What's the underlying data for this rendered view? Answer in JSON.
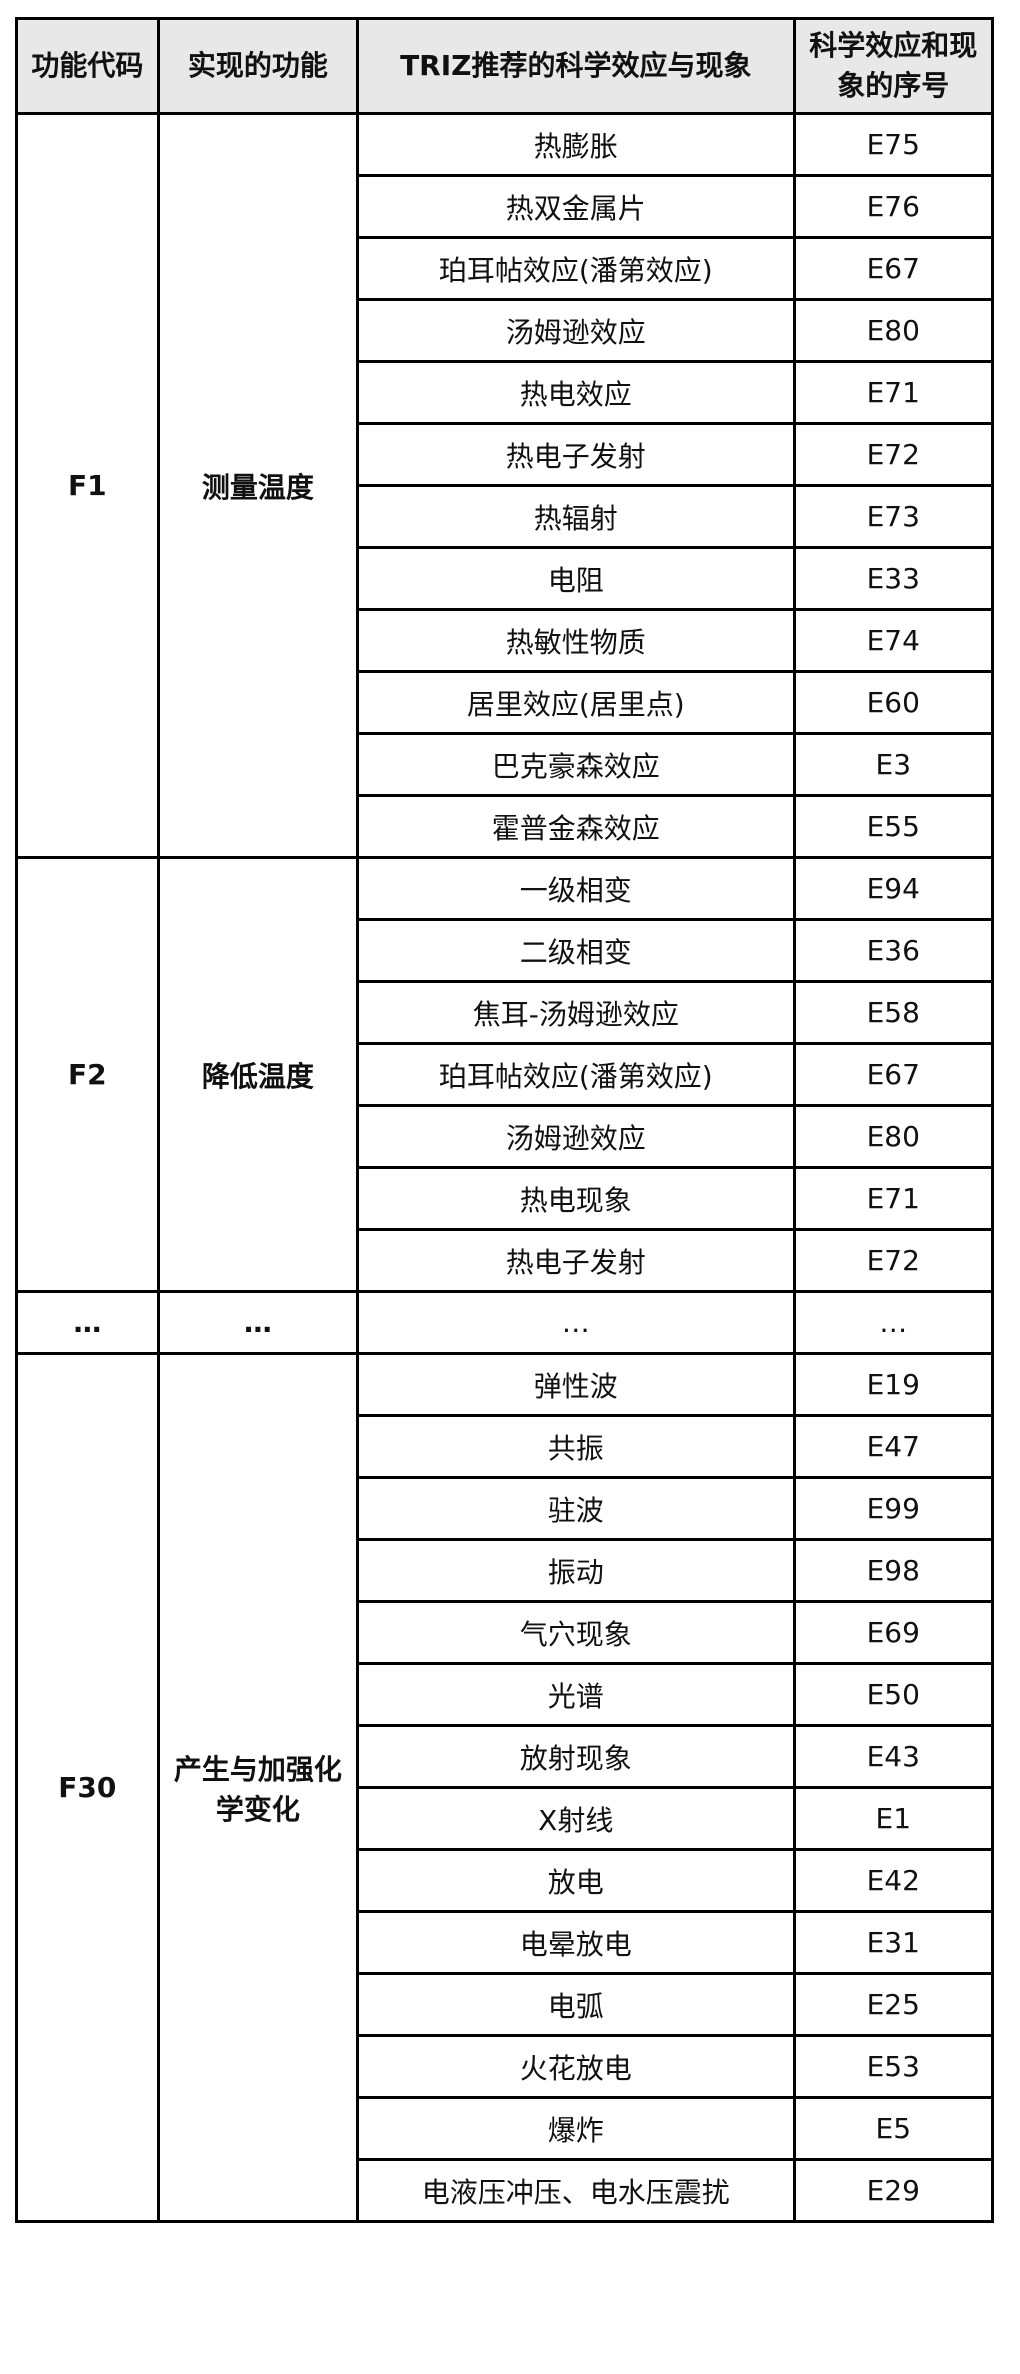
{
  "headers": [
    "功能代码",
    "实现的功能",
    "TRIZ推荐的科学效应与现象",
    "科学效应和现象的序号"
  ],
  "groups": [
    {
      "code": "F1",
      "function": "测量温度",
      "rows": [
        [
          "热膨胀",
          "E75"
        ],
        [
          "热双金属片",
          "E76"
        ],
        [
          "珀耳帖效应(潘第效应)",
          "E67"
        ],
        [
          "汤姆逊效应",
          "E80"
        ],
        [
          "热电效应",
          "E71"
        ],
        [
          "热电子发射",
          "E72"
        ],
        [
          "热辐射",
          "E73"
        ],
        [
          "电阻",
          "E33"
        ],
        [
          "热敏性物质",
          "E74"
        ],
        [
          "居里效应(居里点)",
          "E60"
        ],
        [
          "巴克豪森效应",
          "E3"
        ],
        [
          "霍普金森效应",
          "E55"
        ]
      ]
    },
    {
      "code": "F2",
      "function": "降低温度",
      "rows": [
        [
          "一级相变",
          "E94"
        ],
        [
          "二级相变",
          "E36"
        ],
        [
          "焦耳-汤姆逊效应",
          "E58"
        ],
        [
          "珀耳帖效应(潘第效应)",
          "E67"
        ],
        [
          "汤姆逊效应",
          "E80"
        ],
        [
          "热电现象",
          "E71"
        ],
        [
          "热电子发射",
          "E72"
        ]
      ]
    },
    {
      "code": "…",
      "function": "…",
      "rows": [
        [
          "…",
          "…"
        ]
      ]
    },
    {
      "code": "F30",
      "function": "产生与加强化学变化",
      "rows": [
        [
          "弹性波",
          "E19"
        ],
        [
          "共振",
          "E47"
        ],
        [
          "驻波",
          "E99"
        ],
        [
          "振动",
          "E98"
        ],
        [
          "气穴现象",
          "E69"
        ],
        [
          "光谱",
          "E50"
        ],
        [
          "放射现象",
          "E43"
        ],
        [
          "X射线",
          "E1"
        ],
        [
          "放电",
          "E42"
        ],
        [
          "电晕放电",
          "E31"
        ],
        [
          "电弧",
          "E25"
        ],
        [
          "火花放电",
          "E53"
        ],
        [
          "爆炸",
          "E5"
        ],
        [
          "电液压冲压、电水压震扰",
          "E29"
        ]
      ]
    }
  ]
}
